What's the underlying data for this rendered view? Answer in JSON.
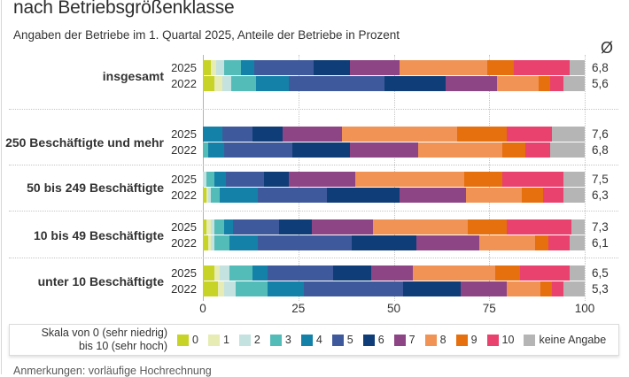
{
  "header": {
    "title": "nach Betriebsgrößenklasse",
    "subtitle": "Angaben der Betriebe im 1. Quartal 2025, Anteile der Betriebe in Prozent",
    "average_symbol": "Ø"
  },
  "axis": {
    "ticks": [
      0,
      25,
      50,
      75,
      100
    ]
  },
  "legend": {
    "label_line1": "Skala von 0 (sehr niedrig)",
    "label_line2": "bis 10 (sehr hoch)",
    "items": [
      {
        "label": "0",
        "color": "#c7d326"
      },
      {
        "label": "1",
        "color": "#e6ecb3"
      },
      {
        "label": "2",
        "color": "#c4e2e0"
      },
      {
        "label": "3",
        "color": "#54bcb8"
      },
      {
        "label": "4",
        "color": "#1381a8"
      },
      {
        "label": "5",
        "color": "#3f5a9c"
      },
      {
        "label": "6",
        "color": "#0e3d78"
      },
      {
        "label": "7",
        "color": "#8e4585"
      },
      {
        "label": "8",
        "color": "#f09355"
      },
      {
        "label": "9",
        "color": "#e66f0e"
      },
      {
        "label": "10",
        "color": "#e9426e"
      },
      {
        "label": "keine Angabe",
        "color": "#b5b5b5"
      }
    ]
  },
  "footnote": "Anmerkungen: vorläufige Hochrechnung",
  "chart_data": {
    "type": "bar",
    "orientation": "horizontal",
    "stacked": true,
    "title": "nach Betriebsgrößenklasse",
    "subtitle": "Angaben der Betriebe im 1. Quartal 2025, Anteile der Betriebe in Prozent",
    "xlim": [
      0,
      100
    ],
    "x_ticks": [
      0,
      25,
      50,
      75,
      100
    ],
    "unit": "Prozent",
    "segment_labels": [
      "0",
      "1",
      "2",
      "3",
      "4",
      "5",
      "6",
      "7",
      "8",
      "9",
      "10",
      "keine Angabe"
    ],
    "colors": [
      "#c7d326",
      "#e6ecb3",
      "#c4e2e0",
      "#54bcb8",
      "#1381a8",
      "#3f5a9c",
      "#0e3d78",
      "#8e4585",
      "#f09355",
      "#e66f0e",
      "#e9426e",
      "#b5b5b5"
    ],
    "groups": [
      {
        "label": "insgesamt",
        "rows": [
          {
            "year": "2025",
            "average": "6,8",
            "values": [
              2,
              1.5,
              2,
              4.5,
              3.5,
              15.5,
              9.5,
              13,
              23,
              7,
              14.5,
              4
            ]
          },
          {
            "year": "2022",
            "average": "5,6",
            "values": [
              3,
              2,
              2.5,
              6.5,
              8.5,
              25,
              16,
              13.5,
              11,
              3,
              3.5,
              5.5
            ]
          }
        ]
      },
      {
        "label": "250 Beschäftigte und mehr",
        "rows": [
          {
            "year": "2025",
            "average": "7,6",
            "values": [
              0,
              0,
              0,
              0,
              5,
              8,
              8,
              15.5,
              30,
              13,
              12,
              8.5
            ]
          },
          {
            "year": "2022",
            "average": "6,8",
            "values": [
              0,
              0,
              0,
              1.5,
              4,
              18,
              15,
              18,
              22,
              6,
              6.5,
              9
            ]
          }
        ]
      },
      {
        "label": "50 bis 249 Beschäftigte",
        "rows": [
          {
            "year": "2025",
            "average": "7,5",
            "values": [
              0,
              0,
              1,
              2,
              3,
              10,
              6.5,
              17.5,
              28.5,
              10,
              16,
              5.5
            ]
          },
          {
            "year": "2022",
            "average": "6,3",
            "values": [
              1,
              0.5,
              0.5,
              2.5,
              10,
              18,
              19,
              17.5,
              14.5,
              5.5,
              5.5,
              5.5
            ]
          }
        ]
      },
      {
        "label": "10 bis 49 Beschäftigte",
        "rows": [
          {
            "year": "2025",
            "average": "7,3",
            "values": [
              1,
              1,
              1,
              2.5,
              2.5,
              12,
              8.5,
              16,
              25,
              10,
              17,
              3.5
            ]
          },
          {
            "year": "2022",
            "average": "6,1",
            "values": [
              1.5,
              0.5,
              1,
              4,
              7.5,
              24.5,
              17,
              16.5,
              14.5,
              3.5,
              5.5,
              4
            ]
          }
        ]
      },
      {
        "label": "unter 10 Beschäftigte",
        "rows": [
          {
            "year": "2025",
            "average": "6,5",
            "values": [
              3,
              1.5,
              2.5,
              6,
              4,
              17,
              10,
              11,
              21.5,
              6.5,
              13,
              4
            ]
          },
          {
            "year": "2022",
            "average": "5,3",
            "values": [
              4,
              1.5,
              3,
              8.5,
              9.5,
              26,
              15,
              12,
              9,
              3,
              3,
              5.5
            ]
          }
        ]
      }
    ]
  }
}
